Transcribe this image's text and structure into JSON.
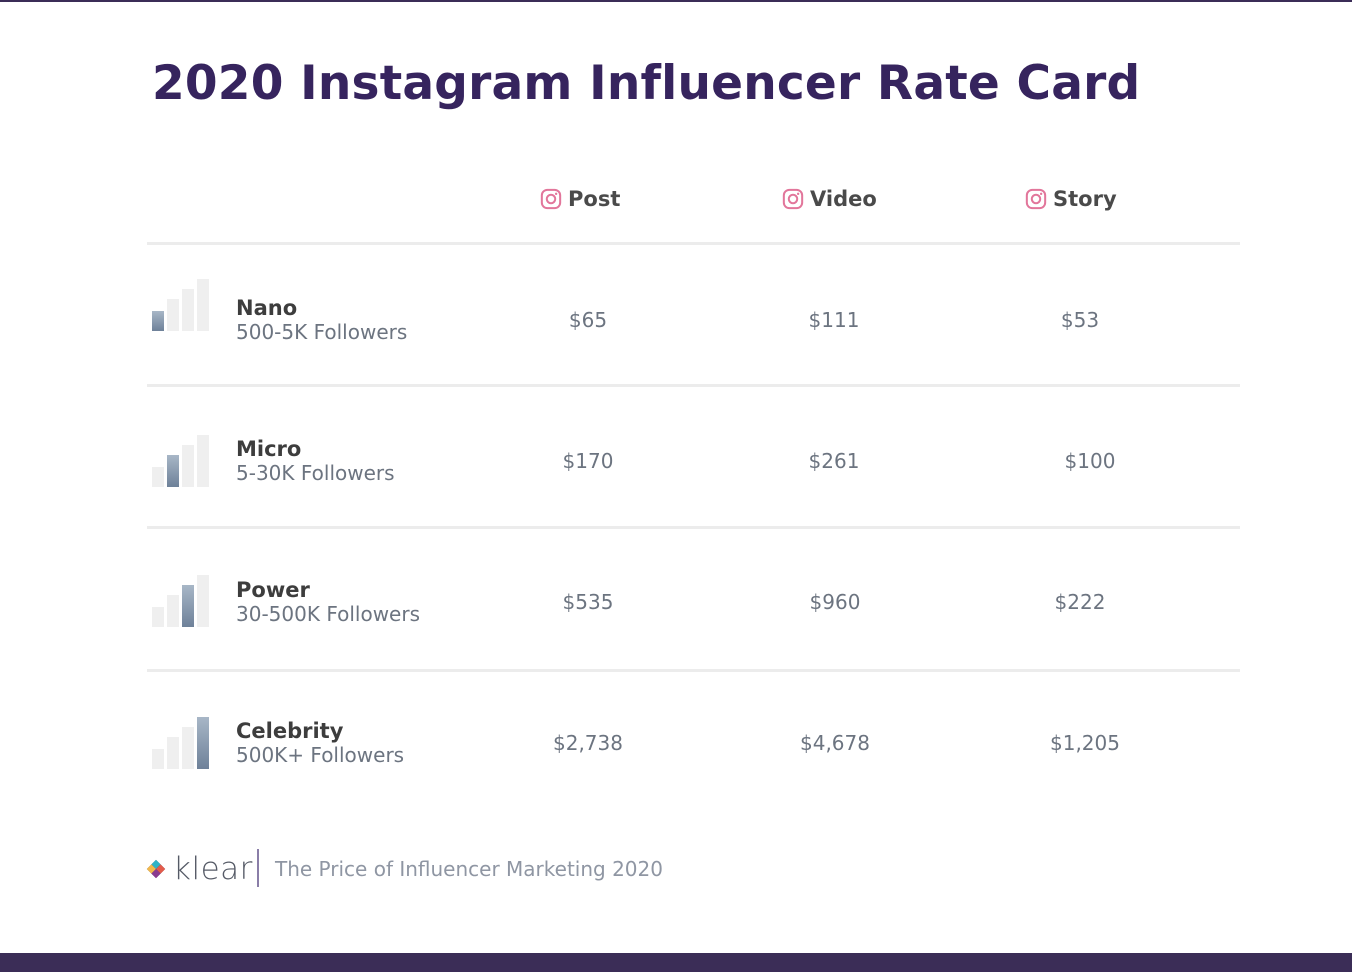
{
  "title": "2020 Instagram Influencer Rate Card",
  "columns": [
    {
      "label": "Post",
      "icon": "instagram-icon"
    },
    {
      "label": "Video",
      "icon": "instagram-icon"
    },
    {
      "label": "Story",
      "icon": "instagram-icon"
    }
  ],
  "tiers": [
    {
      "name": "Nano",
      "followers": "500-5K Followers",
      "level": 1,
      "prices": [
        "$65",
        "$111",
        "$53"
      ]
    },
    {
      "name": "Micro",
      "followers": "5-30K Followers",
      "level": 2,
      "prices": [
        "$170",
        "$261",
        "$100"
      ]
    },
    {
      "name": "Power",
      "followers": "30-500K Followers",
      "level": 3,
      "prices": [
        "$535",
        "$960",
        "$222"
      ]
    },
    {
      "name": "Celebrity",
      "followers": "500K+ Followers",
      "level": 4,
      "prices": [
        "$2,738",
        "$4,678",
        "$1,205"
      ]
    }
  ],
  "footer": {
    "brand": "klear",
    "caption": "The Price of Influencer Marketing 2020"
  },
  "colors": {
    "title": "#36245e",
    "accent_bar": "#3b2d57",
    "instagram_icon": "#e2769b",
    "level_bar_active": "#6e8199"
  }
}
